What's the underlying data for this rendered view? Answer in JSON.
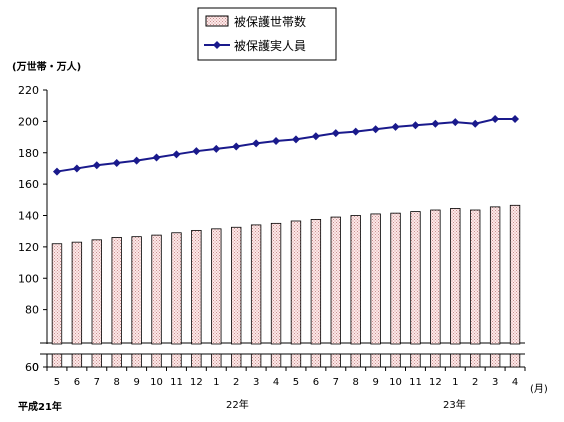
{
  "chart_data": {
    "type": "bar",
    "y_unit_label": "(万世帯・万人)",
    "x_unit_label": "(月)",
    "year_labels": [
      "平成21年",
      "22年",
      "23年"
    ],
    "categories": [
      "5",
      "6",
      "7",
      "8",
      "9",
      "10",
      "11",
      "12",
      "1",
      "2",
      "3",
      "4",
      "5",
      "6",
      "7",
      "8",
      "9",
      "10",
      "11",
      "12",
      "1",
      "2",
      "3",
      "4"
    ],
    "yticks": [
      0,
      60,
      80,
      100,
      120,
      140,
      160,
      180,
      200,
      220
    ],
    "ylim": [
      0,
      220
    ],
    "axis_break": [
      0,
      60
    ],
    "grid": false,
    "legend_position": "top-center",
    "series": [
      {
        "name": "被保護世帯数",
        "type": "bar",
        "values": [
          122,
          123,
          124.5,
          126,
          126.5,
          127.5,
          129,
          130.5,
          131.5,
          132.5,
          134,
          135,
          136.5,
          137.5,
          139,
          140,
          141,
          141.5,
          142.5,
          143.5,
          144.5,
          143.5,
          145.5,
          146.5
        ]
      },
      {
        "name": "被保護実人員",
        "type": "line",
        "values": [
          168,
          170,
          172,
          173.5,
          175,
          177,
          179,
          181,
          182.5,
          184,
          186,
          187.5,
          188.5,
          190.5,
          192.5,
          193.5,
          195,
          196.5,
          197.5,
          198.5,
          199.5,
          198.5,
          201.5,
          201.5
        ]
      }
    ]
  },
  "colors": {
    "bar_fill": "#fde8e8",
    "bar_stripe": "#c89090",
    "bar_stroke": "#000000",
    "line": "#1a1a8c",
    "marker": "#1a1a8c"
  }
}
